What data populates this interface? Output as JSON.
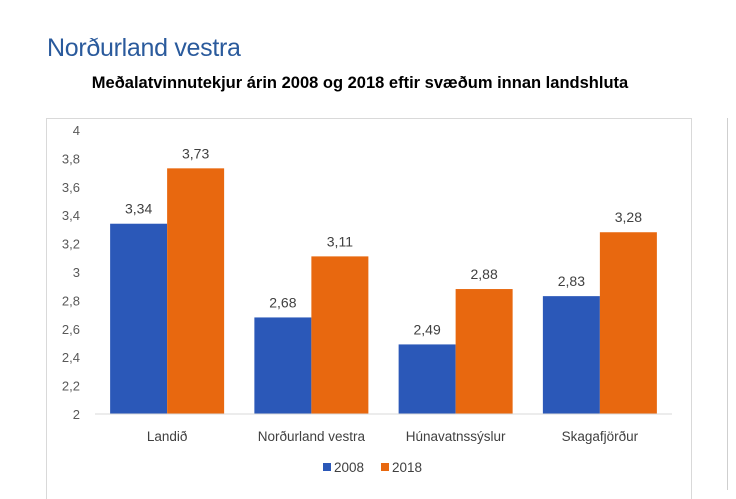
{
  "header": {
    "title": "Norðurland vestra"
  },
  "chart_data": {
    "type": "bar",
    "title": "Meðalatvinnutekjur árin 2008 og 2018 eftir svæðum innan landshluta",
    "categories": [
      "Landið",
      "Norðurland vestra",
      "Húnavatnssýslur",
      "Skagafjörður"
    ],
    "series": [
      {
        "name": "2008",
        "values": [
          3.34,
          2.68,
          2.49,
          2.83
        ],
        "labels": [
          "3,34",
          "2,68",
          "2,49",
          "2,83"
        ],
        "color": "#2b58b8"
      },
      {
        "name": "2018",
        "values": [
          3.73,
          3.11,
          2.88,
          3.28
        ],
        "labels": [
          "3,73",
          "3,11",
          "2,88",
          "3,28"
        ],
        "color": "#e8680f"
      }
    ],
    "ylim": [
      2,
      4
    ],
    "yticks": [
      2,
      2.2,
      2.4,
      2.6,
      2.8,
      3,
      3.2,
      3.4,
      3.6,
      3.8,
      4
    ],
    "ytick_labels": [
      "2",
      "2,2",
      "2,4",
      "2,6",
      "2,8",
      "3",
      "3,2",
      "3,4",
      "3,6",
      "3,8",
      "4"
    ],
    "grid": false,
    "legend": "bottom"
  }
}
